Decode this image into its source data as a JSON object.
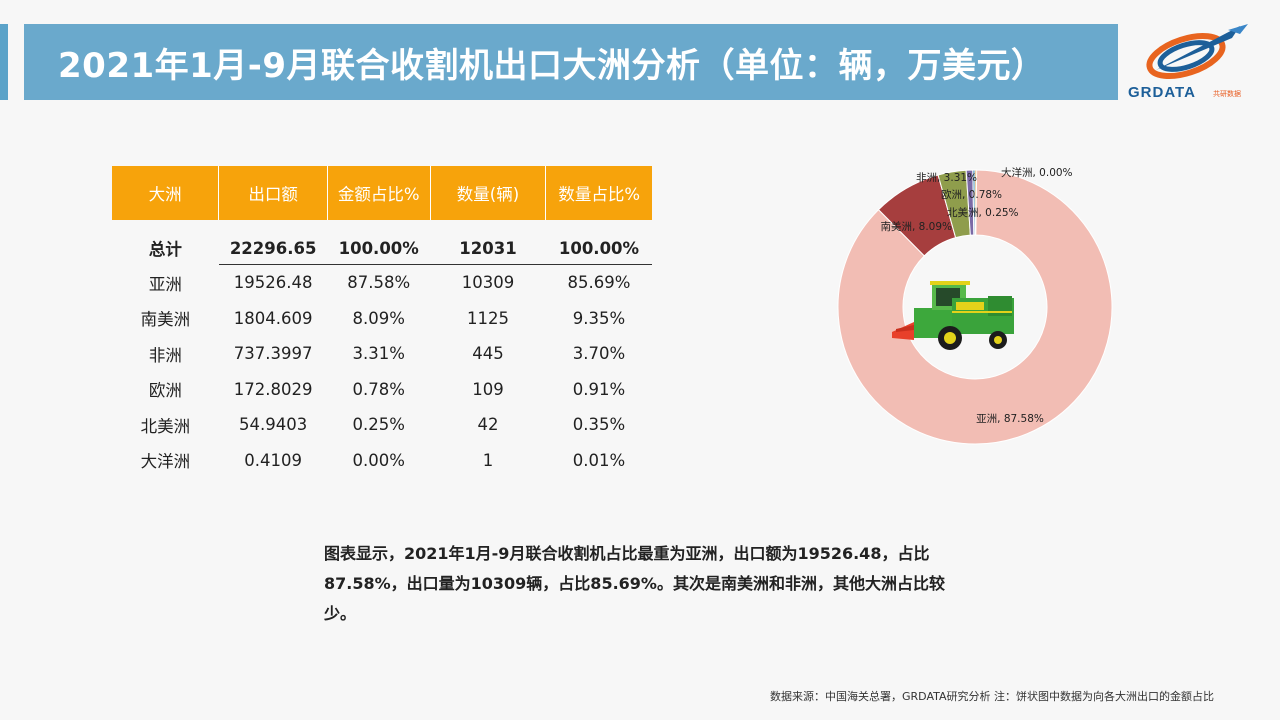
{
  "title": "2021年1月-9月联合收割机出口大洲分析（单位：辆，万美元）",
  "logo": {
    "text": "GRDATA",
    "sub": "共研数据"
  },
  "table": {
    "headers": [
      "大洲",
      "出口额",
      "金额占比%",
      "数量(辆)",
      "数量占比%"
    ],
    "total": [
      "总计",
      "22296.65",
      "100.00%",
      "12031",
      "100.00%"
    ],
    "rows": [
      [
        "亚洲",
        "19526.48",
        "87.58%",
        "10309",
        "85.69%"
      ],
      [
        "南美洲",
        "1804.609",
        "8.09%",
        "1125",
        "9.35%"
      ],
      [
        "非洲",
        "737.3997",
        "3.31%",
        "445",
        "3.70%"
      ],
      [
        "欧洲",
        "172.8029",
        "0.78%",
        "109",
        "0.91%"
      ],
      [
        "北美洲",
        "54.9403",
        "0.25%",
        "42",
        "0.35%"
      ],
      [
        "大洋洲",
        "0.4109",
        "0.00%",
        "1",
        "0.01%"
      ]
    ]
  },
  "chart_data": {
    "type": "pie",
    "style": "donut",
    "categories": [
      "亚洲",
      "南美洲",
      "非洲",
      "欧洲",
      "北美洲",
      "大洋洲"
    ],
    "values": [
      87.58,
      8.09,
      3.31,
      0.78,
      0.25,
      0.0
    ],
    "labels": [
      "亚洲, 87.58%",
      "南美洲, 8.09%",
      "非洲, 3.31%",
      "欧洲, 0.78%",
      "北美洲, 0.25%",
      "大洋洲, 0.00%"
    ],
    "colors": [
      "#f2bdb4",
      "#a63e3e",
      "#8f9d4c",
      "#7b6aa6",
      "#3f8db5",
      "#e0a040"
    ]
  },
  "center_image": "combine-harvester",
  "summary": "图表显示，2021年1月-9月联合收割机占比最重为亚洲，出口额为19526.48，占比87.58%，出口量为10309辆，占比85.69%。其次是南美洲和非洲，其他大洲占比较少。",
  "source": "数据来源：中国海关总署，GRDATA研究分析  注：饼状图中数据为向各大洲出口的金额占比"
}
